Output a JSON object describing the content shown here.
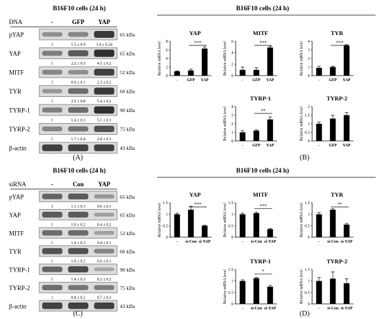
{
  "panels": {
    "A": {
      "label": "(A)",
      "title": "B16F10 cells (24 h)",
      "header_left": "DNA",
      "lanes": [
        "-",
        "GFP",
        "YAP"
      ],
      "rows": [
        {
          "name": "pYAP",
          "kda": "65 kDa",
          "values": [
            "1",
            "1.5 ± 0.9",
            "3.4 ± 0.24"
          ],
          "levels": [
            0.35,
            0.4,
            0.85
          ]
        },
        {
          "name": "YAP",
          "kda": "65 kDa",
          "values": [
            "1",
            "2.2 ± 0.5",
            "4.5 ± 0.2"
          ],
          "levels": [
            0.45,
            0.65,
            0.9
          ]
        },
        {
          "name": "MITF",
          "kda": "52 kDa",
          "values": [
            "1",
            "0.9 ± 0.1",
            "2.3 ± 0.2"
          ],
          "levels": [
            0.4,
            0.35,
            0.8
          ]
        },
        {
          "name": "TYR",
          "kda": "60 kDa",
          "values": [
            "1",
            "2.5 ± 0.8",
            "5.4 ± 0.2"
          ],
          "levels": [
            0.3,
            0.55,
            0.85
          ]
        },
        {
          "name": "TYRP-1",
          "kda": "90 kDa",
          "values": [
            "1",
            "1.4 ± 0.3",
            "5.1 ± 0.3"
          ],
          "levels": [
            0.45,
            0.55,
            0.9
          ]
        },
        {
          "name": "TYRP-2",
          "kda": "75 kDa",
          "values": [
            "1",
            "1.7 ± 0.4",
            "2.8 ± 0.3"
          ],
          "levels": [
            0.4,
            0.5,
            0.7
          ]
        },
        {
          "name": "β-actin",
          "kda": "43 kDa",
          "values": null,
          "levels": [
            0.8,
            0.8,
            0.8
          ]
        }
      ]
    },
    "B": {
      "label": "(B)",
      "title": "B16F10 cells (24 h)",
      "ylabel": "Relative mRNA level",
      "charts": [
        {
          "title": "YAP",
          "categories": [
            "-",
            "GFP",
            "YAP"
          ],
          "values": [
            1.0,
            1.2,
            6.3
          ],
          "errors": [
            0.1,
            0.3,
            0.4
          ],
          "ylim": [
            0,
            8
          ],
          "ticks": [
            "0",
            "2",
            "4",
            "6",
            "8"
          ],
          "sig": "***"
        },
        {
          "title": "MITF",
          "categories": [
            "-",
            "GFP",
            "YAP"
          ],
          "values": [
            1.0,
            1.0,
            4.9
          ],
          "errors": [
            0.5,
            0.4,
            0.2
          ],
          "ylim": [
            0,
            6
          ],
          "ticks": [
            "0",
            "2",
            "4",
            "6"
          ],
          "sig": "***"
        },
        {
          "title": "TYR",
          "categories": [
            "-",
            "GFP",
            "YAP"
          ],
          "values": [
            0.9,
            1.0,
            3.5
          ],
          "errors": [
            0.2,
            0.1,
            0.1
          ],
          "ylim": [
            0,
            4
          ],
          "ticks": [
            "0",
            "1",
            "2",
            "3",
            "4"
          ],
          "sig": "***"
        },
        {
          "title": "TYRP-1",
          "categories": [
            "-",
            "GFP",
            "YAP"
          ],
          "values": [
            1.0,
            1.2,
            2.5
          ],
          "errors": [
            0.2,
            0.1,
            0.3
          ],
          "ylim": [
            0,
            4
          ],
          "ticks": [
            "0",
            "1",
            "2",
            "3",
            "4"
          ],
          "sig": "**"
        },
        {
          "title": "TYRP-2",
          "categories": [
            "-",
            "GFP",
            "YAP"
          ],
          "values": [
            1.0,
            1.3,
            1.5
          ],
          "errors": [
            0.1,
            0.2,
            0.15
          ],
          "ylim": [
            0,
            2
          ],
          "ticks": [
            "0",
            "0.5",
            "1",
            "1.5",
            "2"
          ],
          "sig": ""
        }
      ]
    },
    "C": {
      "label": "(C)",
      "title": "B16F10 cells (24 h)",
      "header_left": "siRNA",
      "lanes": [
        "-",
        "Con",
        "YAP"
      ],
      "rows": [
        {
          "name": "pYAP",
          "kda": "65 kDa",
          "values": [
            "1",
            "1.1 ± 0.3",
            "0.6 ± 0.1"
          ],
          "levels": [
            0.6,
            0.65,
            0.3
          ]
        },
        {
          "name": "YAP",
          "kda": "65 kDa",
          "values": [
            "1",
            "1.0 ± 0.2",
            "0.4 ± 0.2"
          ],
          "levels": [
            0.65,
            0.65,
            0.25
          ]
        },
        {
          "name": "MITF",
          "kda": "52 kDa",
          "values": [
            "1",
            "1.0 ± 0.3",
            "0.4 ± 0.1"
          ],
          "levels": [
            0.55,
            0.55,
            0.25
          ]
        },
        {
          "name": "TYR",
          "kda": "60 kDa",
          "values": [
            "1",
            "1.0 ± 0.2",
            "0.6 ± 0.1"
          ],
          "levels": [
            0.7,
            0.7,
            0.4
          ]
        },
        {
          "name": "TYRP-1",
          "kda": "90 kDa",
          "values": [
            "1",
            "1.4 ± 0.3",
            "0.2 ± 0.2"
          ],
          "levels": [
            0.6,
            0.75,
            0.2
          ]
        },
        {
          "name": "TYRP-2",
          "kda": "75 kDa",
          "values": [
            "1",
            "0.8 ± 0.2",
            "0.7 ± 0.3"
          ],
          "levels": [
            0.55,
            0.5,
            0.45
          ]
        },
        {
          "name": "β-actin",
          "kda": "43 kDa",
          "values": null,
          "levels": [
            0.8,
            0.8,
            0.8
          ]
        }
      ]
    },
    "D": {
      "label": "(D)",
      "title": "B16F10 cells (24 h)",
      "ylabel": "Relative mRNA level",
      "charts": [
        {
          "title": "YAP",
          "categories": [
            "-",
            "si-Con",
            "si-YAP"
          ],
          "values": [
            1.0,
            1.2,
            0.5
          ],
          "errors": [
            0.05,
            0.15,
            0.02
          ],
          "ylim": [
            0,
            1.5
          ],
          "ticks": [
            "0",
            "0.5",
            "1",
            "1.5"
          ],
          "sig": "***"
        },
        {
          "title": "MITF",
          "categories": [
            "-",
            "si-Con",
            "si-YAP"
          ],
          "values": [
            1.0,
            1.05,
            0.35
          ],
          "errors": [
            0.05,
            0.05,
            0.03
          ],
          "ylim": [
            0,
            1.5
          ],
          "ticks": [
            "0",
            "0.5",
            "1",
            "1.5"
          ],
          "sig": "***"
        },
        {
          "title": "TYR",
          "categories": [
            "-",
            "si-Con",
            "si-YAP"
          ],
          "values": [
            1.0,
            1.2,
            0.55
          ],
          "errors": [
            0.08,
            0.04,
            0.05
          ],
          "ylim": [
            0,
            1.5
          ],
          "ticks": [
            "0",
            "0.5",
            "1",
            "1.5"
          ],
          "sig": "**"
        },
        {
          "title": "TYRP-1",
          "categories": [
            "-",
            "si-Con",
            "si-YAP"
          ],
          "values": [
            1.0,
            1.12,
            0.75
          ],
          "errors": [
            0.05,
            0.03,
            0.06
          ],
          "ylim": [
            0,
            1.5
          ],
          "ticks": [
            "0",
            "0.5",
            "1",
            "1.5"
          ],
          "sig": "*"
        },
        {
          "title": "TYRP-2",
          "categories": [
            "-",
            "si-Con",
            "si-YAP"
          ],
          "values": [
            1.0,
            1.1,
            0.9
          ],
          "errors": [
            0.15,
            0.3,
            0.2
          ],
          "ylim": [
            0,
            1.5
          ],
          "ticks": [
            "0",
            "0.5",
            "1",
            "1.5"
          ],
          "sig": ""
        }
      ]
    }
  }
}
